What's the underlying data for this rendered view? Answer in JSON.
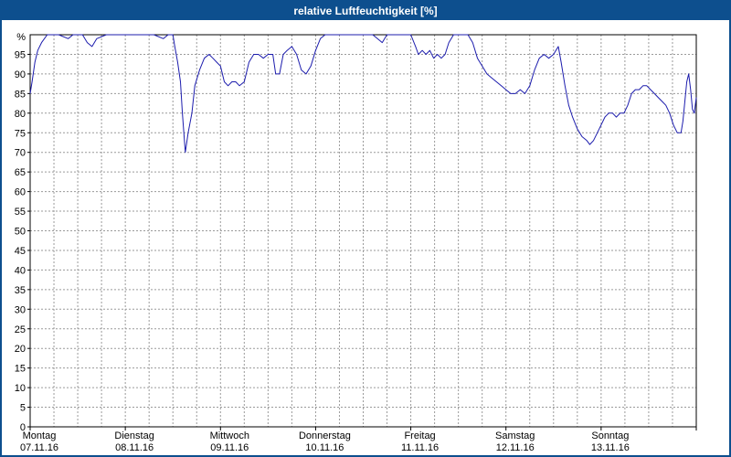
{
  "window": {
    "title": "relative Luftfeuchtigkeit [%]"
  },
  "colors": {
    "titlebar_background": "#0d4f8e",
    "title_text": "#ffffff",
    "window_border": "#0d4f8e"
  },
  "chart_data": {
    "type": "line",
    "title": "relative Luftfeuchtigkeit [%]",
    "ylabel": "%",
    "unit_label": "%",
    "ylim": [
      0,
      100
    ],
    "ytick_step": 5,
    "grid": true,
    "legend": "none",
    "x_axis": {
      "range_days": [
        0,
        7
      ],
      "minor_tick_hours": 6,
      "day_labels": [
        {
          "name": "Montag",
          "date": "07.11.16"
        },
        {
          "name": "Dienstag",
          "date": "08.11.16"
        },
        {
          "name": "Mittwoch",
          "date": "09.11.16"
        },
        {
          "name": "Donnerstag",
          "date": "10.11.16"
        },
        {
          "name": "Freitag",
          "date": "11.11.16"
        },
        {
          "name": "Samstag",
          "date": "12.11.16"
        },
        {
          "name": "Sonntag",
          "date": "13.11.16"
        }
      ]
    },
    "colors": {
      "plot_background": "#ffffff",
      "grid": "#9a9a9a",
      "axis": "#000000",
      "labels": "#000000",
      "line": "#1c1cad"
    },
    "series": [
      {
        "name": "relative Luftfeuchtigkeit",
        "color": "#1c1cad",
        "x_days": [
          0.0,
          0.02,
          0.05,
          0.08,
          0.12,
          0.18,
          0.3,
          0.4,
          0.45,
          0.55,
          0.6,
          0.65,
          0.7,
          0.8,
          0.9,
          1.0,
          1.1,
          1.2,
          1.3,
          1.4,
          1.45,
          1.5,
          1.52,
          1.55,
          1.58,
          1.6,
          1.63,
          1.66,
          1.7,
          1.73,
          1.78,
          1.83,
          1.88,
          1.92,
          1.96,
          2.0,
          2.04,
          2.08,
          2.12,
          2.16,
          2.2,
          2.25,
          2.3,
          2.35,
          2.4,
          2.45,
          2.5,
          2.55,
          2.58,
          2.62,
          2.66,
          2.7,
          2.75,
          2.8,
          2.85,
          2.9,
          2.95,
          3.0,
          3.05,
          3.1,
          3.2,
          3.3,
          3.4,
          3.5,
          3.6,
          3.65,
          3.7,
          3.75,
          3.85,
          3.95,
          4.0,
          4.05,
          4.08,
          4.12,
          4.16,
          4.2,
          4.24,
          4.28,
          4.32,
          4.36,
          4.4,
          4.45,
          4.55,
          4.6,
          4.65,
          4.7,
          4.75,
          4.8,
          4.85,
          4.9,
          4.95,
          5.0,
          5.05,
          5.1,
          5.15,
          5.2,
          5.25,
          5.3,
          5.35,
          5.4,
          5.45,
          5.5,
          5.55,
          5.58,
          5.62,
          5.66,
          5.7,
          5.75,
          5.8,
          5.85,
          5.88,
          5.92,
          5.96,
          6.0,
          6.04,
          6.08,
          6.12,
          6.16,
          6.2,
          6.24,
          6.28,
          6.32,
          6.36,
          6.4,
          6.44,
          6.48,
          6.52,
          6.56,
          6.6,
          6.64,
          6.68,
          6.72,
          6.76,
          6.8,
          6.84,
          6.86,
          6.88,
          6.9,
          6.92,
          6.94,
          6.96,
          6.98,
          7.0
        ],
        "values": [
          85,
          88,
          93,
          96,
          98,
          100,
          100,
          99,
          100,
          100,
          98,
          97,
          99,
          100,
          100,
          100,
          100,
          100,
          100,
          99,
          100,
          100,
          97,
          93,
          88,
          80,
          70,
          75,
          80,
          87,
          91,
          94,
          95,
          94,
          93,
          92,
          88,
          87,
          88,
          88,
          87,
          88,
          93,
          95,
          95,
          94,
          95,
          95,
          90,
          90,
          95,
          96,
          97,
          95,
          91,
          90,
          92,
          96,
          99,
          100,
          100,
          100,
          100,
          100,
          100,
          99,
          98,
          100,
          100,
          100,
          100,
          97,
          95,
          96,
          95,
          96,
          94,
          95,
          94,
          95,
          98,
          100,
          100,
          100,
          98,
          94,
          92,
          90,
          89,
          88,
          87,
          86,
          85,
          85,
          86,
          85,
          87,
          91,
          94,
          95,
          94,
          95,
          97,
          93,
          87,
          82,
          79,
          76,
          74,
          73,
          72,
          73,
          75,
          77,
          79,
          80,
          80,
          79,
          80,
          80,
          82,
          85,
          86,
          86,
          87,
          87,
          86,
          85,
          84,
          83,
          82,
          80,
          77,
          75,
          75,
          78,
          83,
          88,
          90,
          86,
          81,
          80,
          84
        ]
      }
    ]
  }
}
